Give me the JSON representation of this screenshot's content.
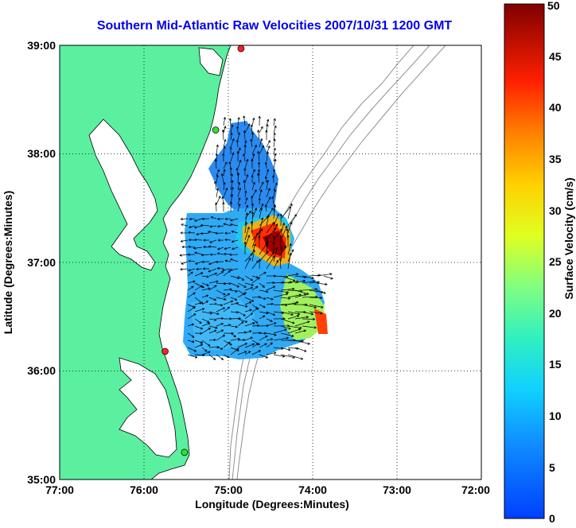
{
  "title": "Southern Mid-Atlantic Raw Velocities 2007/10/31 1200 GMT",
  "map": {
    "xlabel": "Longitude (Degrees:Minutes)",
    "ylabel": "Latitude (Degrees:Minutes)",
    "lon_ticks": [
      "77:00",
      "76:00",
      "75:00",
      "74:00",
      "73:00",
      "72:00"
    ],
    "lat_ticks": [
      "39:00",
      "38:00",
      "37:00",
      "36:00",
      "35:00"
    ],
    "lon_range": [
      -77,
      -72
    ],
    "lat_range": [
      35,
      39
    ],
    "land_color": "#5af0a0",
    "coast_color": "#000000",
    "bathymetry_color": "#909090",
    "grid": "dotted",
    "stations": [
      {
        "color": "#ff2020",
        "lon": -74.85,
        "lat": 38.97
      },
      {
        "color": "#30e030",
        "lon": -75.15,
        "lat": 38.22
      },
      {
        "color": "#ff2020",
        "lon": -75.75,
        "lat": 36.18
      },
      {
        "color": "#30e030",
        "lon": -75.52,
        "lat": 35.25
      }
    ]
  },
  "colorbar": {
    "label": "Surface Velocity (cm/s)",
    "ticks": [
      "0",
      "5",
      "10",
      "15",
      "20",
      "25",
      "30",
      "35",
      "40",
      "45",
      "50"
    ],
    "min": 0,
    "max": 50
  }
}
